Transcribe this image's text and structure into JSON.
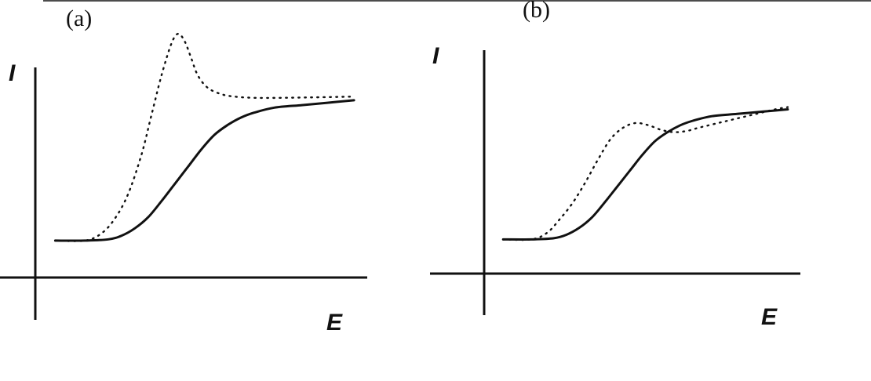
{
  "chart_data": [
    {
      "type": "line",
      "panel_label": "(a)",
      "ylabel": "I",
      "xlabel": "E",
      "grid": false,
      "axis_tick_labels": false,
      "series": [
        {
          "style": "solid",
          "x": [
            0.06,
            0.15,
            0.22,
            0.26,
            0.3,
            0.34,
            0.38,
            0.42,
            0.46,
            0.5,
            0.54,
            0.58,
            0.62,
            0.66,
            0.72,
            0.8,
            0.88,
            0.96
          ],
          "y": [
            0.15,
            0.15,
            0.155,
            0.17,
            0.2,
            0.245,
            0.31,
            0.38,
            0.45,
            0.52,
            0.58,
            0.62,
            0.65,
            0.67,
            0.69,
            0.7,
            0.71,
            0.72
          ]
        },
        {
          "style": "dotted",
          "x": [
            0.06,
            0.15,
            0.2,
            0.24,
            0.28,
            0.32,
            0.35,
            0.38,
            0.41,
            0.43,
            0.45,
            0.47,
            0.49,
            0.52,
            0.56,
            0.6,
            0.66,
            0.74,
            0.84,
            0.96
          ],
          "y": [
            0.15,
            0.15,
            0.18,
            0.24,
            0.34,
            0.5,
            0.66,
            0.82,
            0.95,
            0.99,
            0.96,
            0.89,
            0.82,
            0.77,
            0.745,
            0.735,
            0.73,
            0.73,
            0.732,
            0.735
          ]
        }
      ]
    },
    {
      "type": "line",
      "panel_label": "(b)",
      "ylabel": "I",
      "xlabel": "E",
      "grid": false,
      "axis_tick_labels": false,
      "series": [
        {
          "style": "solid",
          "x": [
            0.06,
            0.15,
            0.22,
            0.26,
            0.3,
            0.34,
            0.38,
            0.42,
            0.46,
            0.5,
            0.54,
            0.58,
            0.62,
            0.66,
            0.72,
            0.8,
            0.88,
            0.96
          ],
          "y": [
            0.15,
            0.15,
            0.155,
            0.17,
            0.2,
            0.245,
            0.31,
            0.38,
            0.45,
            0.52,
            0.58,
            0.62,
            0.65,
            0.67,
            0.69,
            0.7,
            0.71,
            0.72
          ]
        },
        {
          "style": "dotted",
          "x": [
            0.06,
            0.15,
            0.2,
            0.24,
            0.28,
            0.32,
            0.36,
            0.4,
            0.44,
            0.48,
            0.52,
            0.56,
            0.6,
            0.64,
            0.68,
            0.74,
            0.8,
            0.86,
            0.92,
            0.96
          ],
          "y": [
            0.15,
            0.15,
            0.18,
            0.24,
            0.31,
            0.4,
            0.5,
            0.59,
            0.64,
            0.66,
            0.65,
            0.63,
            0.62,
            0.625,
            0.64,
            0.66,
            0.68,
            0.7,
            0.72,
            0.73
          ]
        }
      ]
    }
  ]
}
